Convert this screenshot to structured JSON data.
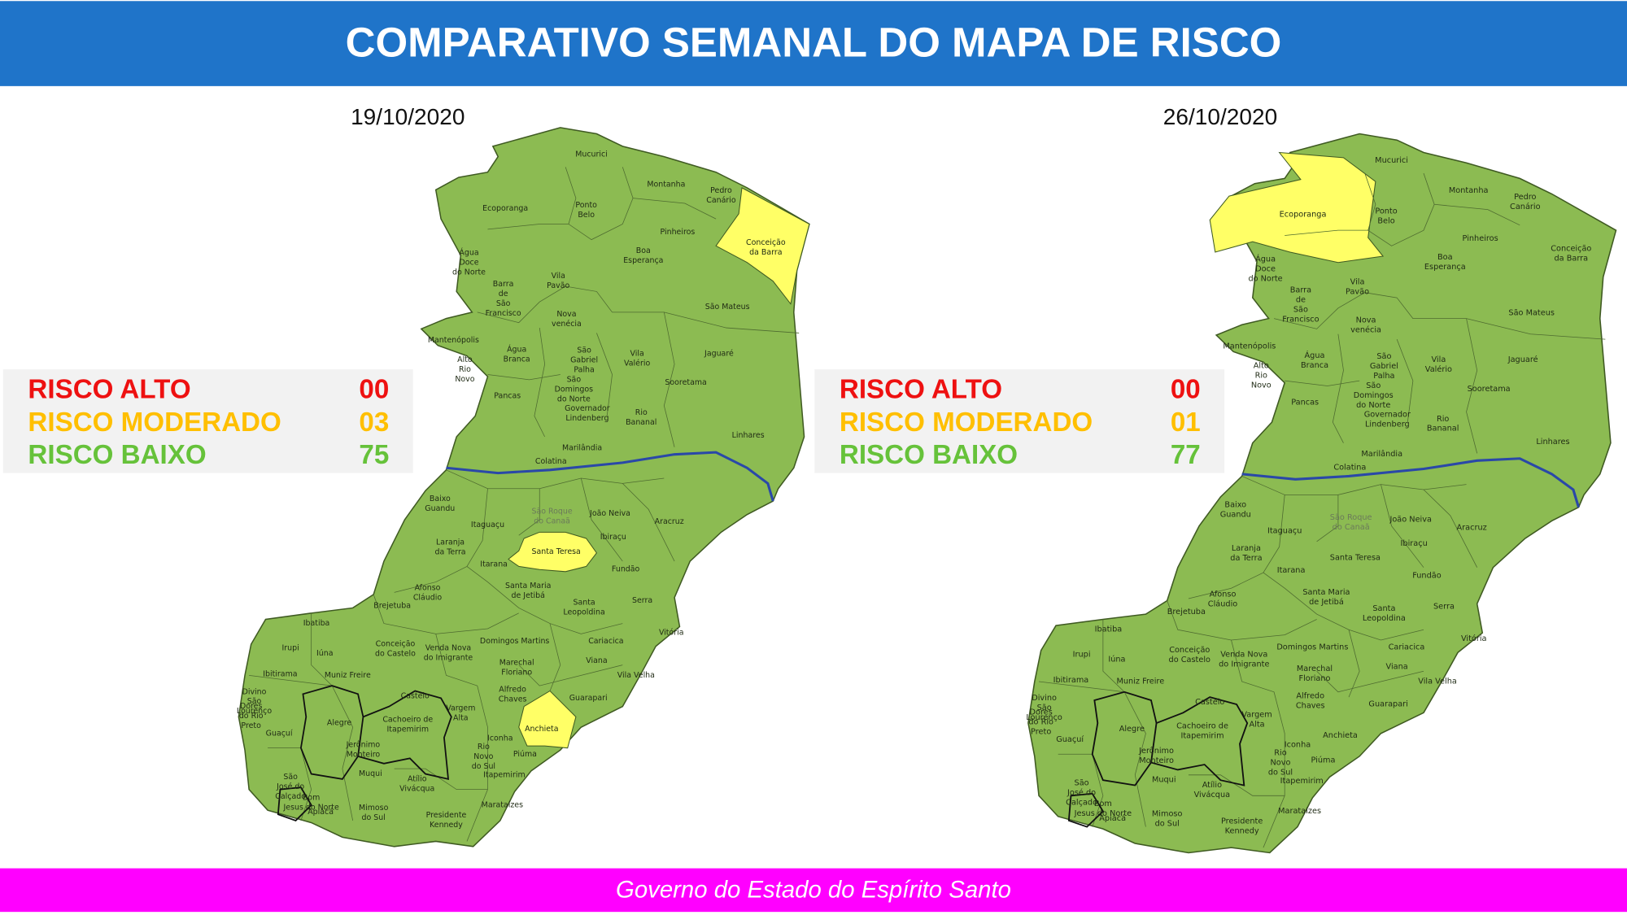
{
  "header": {
    "title": "COMPARATIVO SEMANAL DO MAPA DE RISCO"
  },
  "maps": [
    {
      "date": "19/10/2020",
      "risk": [
        {
          "label": "RISCO ALTO",
          "value": "00"
        },
        {
          "label": "RISCO MODERADO",
          "value": "03"
        },
        {
          "label": "RISCO BAIXO",
          "value": "75"
        }
      ]
    },
    {
      "date": "26/10/2020",
      "risk": [
        {
          "label": "RISCO ALTO",
          "value": "00"
        },
        {
          "label": "RISCO MODERADO",
          "value": "01"
        },
        {
          "label": "RISCO BAIXO",
          "value": "77"
        }
      ]
    }
  ],
  "municipalities": [
    [
      "Mucurici"
    ],
    [
      "Montanha"
    ],
    [
      "Pedro",
      "Canário"
    ],
    [
      "Ecoporanga"
    ],
    [
      "Ponto",
      "Belo"
    ],
    [
      "Pinheiros"
    ],
    [
      "Conceição",
      "da Barra"
    ],
    [
      "Água",
      "Doce",
      "do Norte"
    ],
    [
      "Boa",
      "Esperança"
    ],
    [
      "Barra",
      "de",
      "São",
      "Francisco"
    ],
    [
      "Vila",
      "Pavão"
    ],
    [
      "São Mateus"
    ],
    [
      "Nova",
      "venécia"
    ],
    [
      "Mantenópolis"
    ],
    [
      "Água",
      "Branca"
    ],
    [
      "São",
      "Gabriel",
      "Palha"
    ],
    [
      "Vila",
      "Valério"
    ],
    [
      "Jaguaré"
    ],
    [
      "Alto",
      "Rio",
      "Novo"
    ],
    [
      "Sooretama"
    ],
    [
      "São",
      "Domingos",
      "do Norte"
    ],
    [
      "Pancas"
    ],
    [
      "Governador",
      "Lindenberg"
    ],
    [
      "Rio",
      "Bananal"
    ],
    [
      "Linhares"
    ],
    [
      "Marilândia"
    ],
    [
      "Colatina"
    ],
    [
      "Baixo",
      "Guandu"
    ],
    [
      "São Roque",
      "do Canaã"
    ],
    [
      "João Neiva"
    ],
    [
      "Aracruz"
    ],
    [
      "Itaguaçu"
    ],
    [
      "Ibiraçu"
    ],
    [
      "Laranja",
      "da Terra"
    ],
    [
      "Santa Teresa"
    ],
    [
      "Itarana"
    ],
    [
      "Fundão"
    ],
    [
      "Afonso",
      "Cláudio"
    ],
    [
      "Santa Maria",
      "de Jetibá"
    ],
    [
      "Serra"
    ],
    [
      "Santa",
      "Leopoldina"
    ],
    [
      "Brejetuba"
    ],
    [
      "Ibatiba"
    ],
    [
      "Vitória"
    ],
    [
      "Domingos Martins"
    ],
    [
      "Cariacica"
    ],
    [
      "Conceição",
      "do Castelo"
    ],
    [
      "Venda Nova",
      "do Imigrante"
    ],
    [
      "Irupi"
    ],
    [
      "Iúna"
    ],
    [
      "Marechal",
      "Floriano"
    ],
    [
      "Viana"
    ],
    [
      "Ibitirama"
    ],
    [
      "Muniz Freire"
    ],
    [
      "Vila Velha"
    ],
    [
      "Alfredo",
      "Chaves"
    ],
    [
      "Divino",
      "São",
      "Lourenço"
    ],
    [
      "Castelo"
    ],
    [
      "Guarapari"
    ],
    [
      "Dores",
      "do Rio",
      "Preto"
    ],
    [
      "Vargem",
      "Alta"
    ],
    [
      "Alegre"
    ],
    [
      "Cachoeiro de",
      "Itapemirim"
    ],
    [
      "Anchieta"
    ],
    [
      "Guaçuí"
    ],
    [
      "Iconha"
    ],
    [
      "Jerônimo",
      "Monteiro"
    ],
    [
      "Rio",
      "Novo",
      "do Sul"
    ],
    [
      "Piúma"
    ],
    [
      "São",
      "José do",
      "Calçado"
    ],
    [
      "Muqui"
    ],
    [
      "Atílio",
      "Vivácqua"
    ],
    [
      "Itapemirim"
    ],
    [
      "Bom",
      "Jesus do Norte"
    ],
    [
      "Apiacá"
    ],
    [
      "Mimoso",
      "do Sul"
    ],
    [
      "Marataízes"
    ],
    [
      "Presidente",
      "Kennedy"
    ]
  ],
  "footer": {
    "text": "Governo do Estado do Espírito Santo"
  }
}
